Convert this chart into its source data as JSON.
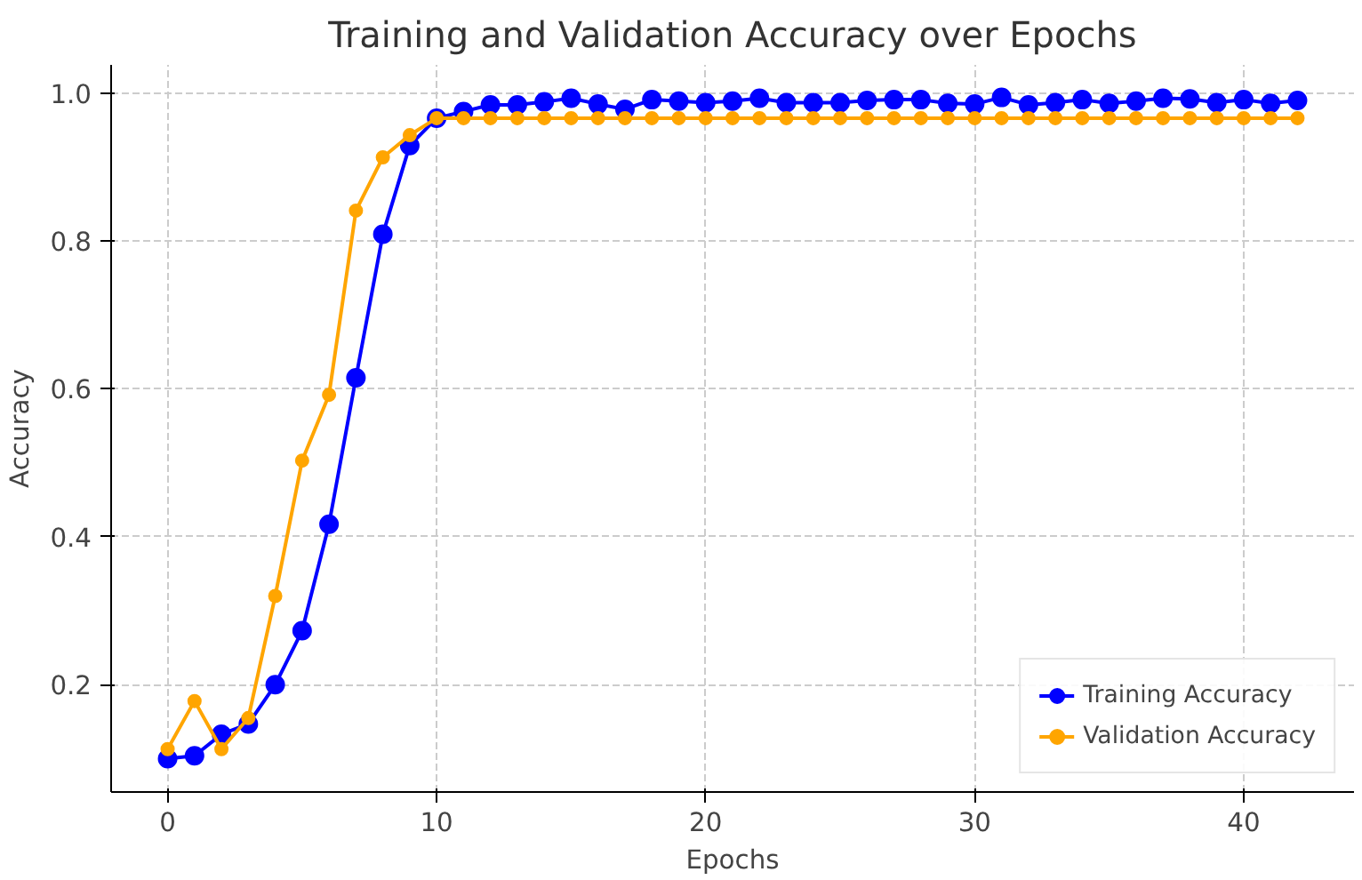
{
  "chart_data": {
    "type": "line",
    "title": "Training and Validation Accuracy over Epochs",
    "xlabel": "Epochs",
    "ylabel": "Accuracy",
    "x": [
      0,
      1,
      2,
      3,
      4,
      5,
      6,
      7,
      8,
      9,
      10,
      11,
      12,
      13,
      14,
      15,
      16,
      17,
      18,
      19,
      20,
      21,
      22,
      23,
      24,
      25,
      26,
      27,
      28,
      29,
      30,
      31,
      32,
      33,
      34,
      35,
      36,
      37,
      38,
      39,
      40,
      41,
      42
    ],
    "series": [
      {
        "name": "Training Accuracy",
        "color": "#0000ff",
        "values": [
          0.1,
          0.104,
          0.133,
          0.147,
          0.2,
          0.273,
          0.417,
          0.615,
          0.809,
          0.929,
          0.966,
          0.975,
          0.984,
          0.984,
          0.988,
          0.993,
          0.985,
          0.978,
          0.991,
          0.989,
          0.987,
          0.989,
          0.993,
          0.987,
          0.987,
          0.987,
          0.99,
          0.991,
          0.991,
          0.986,
          0.985,
          0.994,
          0.984,
          0.987,
          0.991,
          0.986,
          0.989,
          0.993,
          0.992,
          0.987,
          0.991,
          0.986,
          0.99
        ]
      },
      {
        "name": "Validation Accuracy",
        "color": "#ffa500",
        "values": [
          0.113,
          0.178,
          0.113,
          0.155,
          0.32,
          0.503,
          0.592,
          0.841,
          0.913,
          0.943,
          0.966,
          0.966,
          0.966,
          0.966,
          0.966,
          0.966,
          0.966,
          0.966,
          0.966,
          0.966,
          0.966,
          0.966,
          0.966,
          0.966,
          0.966,
          0.966,
          0.966,
          0.966,
          0.966,
          0.966,
          0.966,
          0.966,
          0.966,
          0.966,
          0.966,
          0.966,
          0.966,
          0.966,
          0.966,
          0.966,
          0.966,
          0.966,
          0.966
        ]
      }
    ],
    "xlim": [
      -2.1,
      44.1
    ],
    "ylim": [
      0.055,
      1.038
    ],
    "xticks": [
      0,
      10,
      20,
      30,
      40
    ],
    "yticks": [
      0.2,
      0.4,
      0.6,
      0.8,
      {
        "value": 1.0,
        "label": "1.0"
      }
    ],
    "grid": true,
    "legend": "bottom right",
    "marker": "circle",
    "line_style": "solid"
  }
}
